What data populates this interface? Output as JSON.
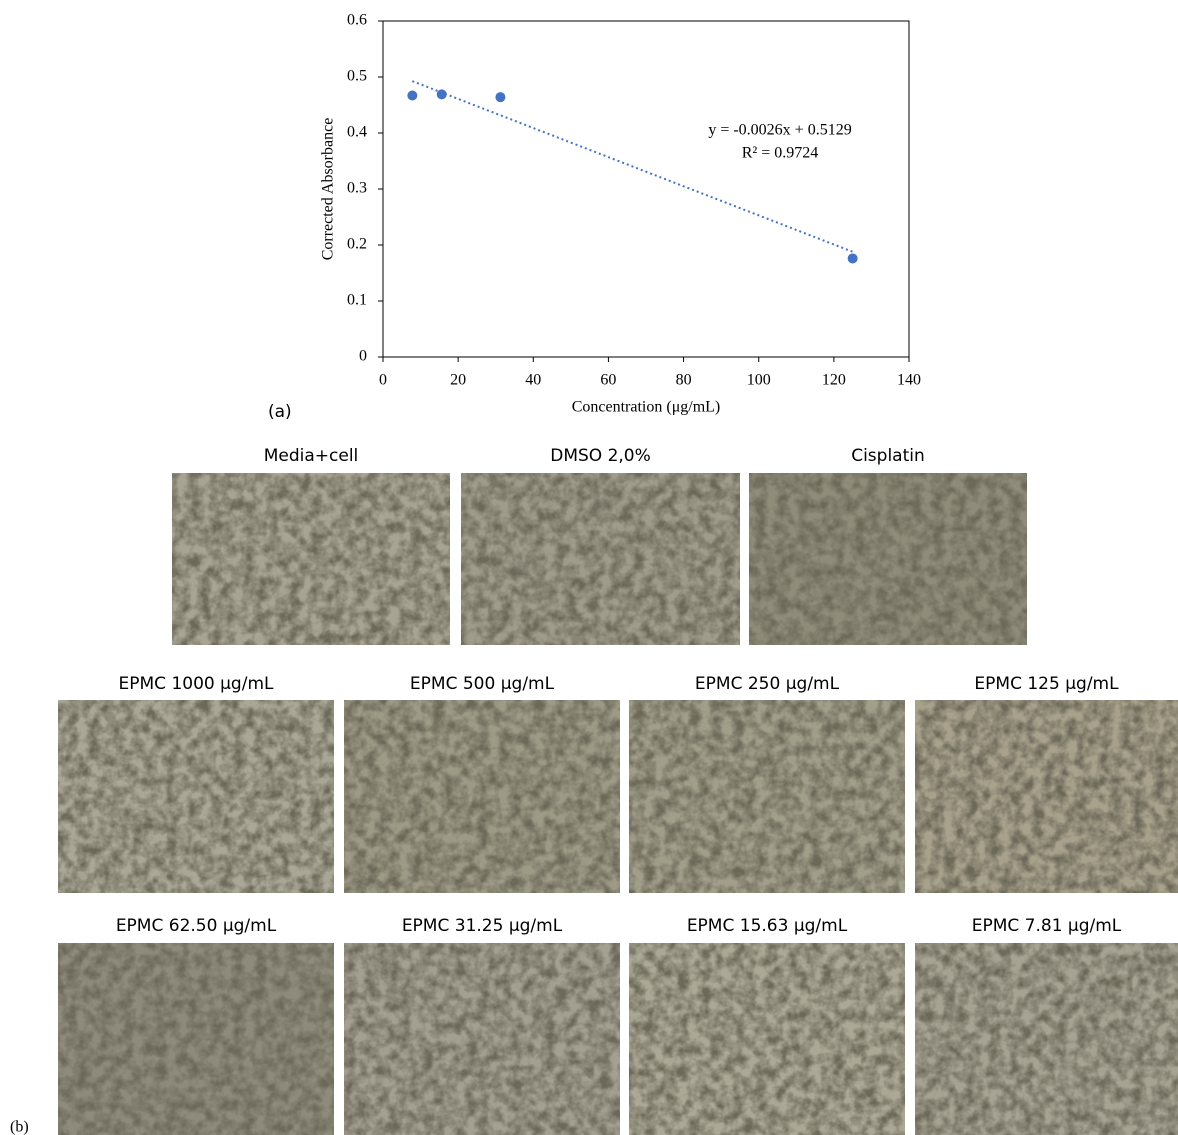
{
  "chart_data": {
    "type": "scatter",
    "x_label": "Concentration (μg/mL)",
    "y_label": "Corrected Absorbance",
    "x": [
      7.81,
      15.63,
      31.25,
      125
    ],
    "values": [
      0.467,
      0.469,
      0.464,
      0.176
    ],
    "color": "#4472c4",
    "xlim": [
      0,
      140
    ],
    "ylim": [
      0,
      0.6
    ],
    "xticks": [
      0,
      20,
      40,
      60,
      80,
      100,
      120,
      140
    ],
    "yticks": [
      0,
      0.1,
      0.2,
      0.3,
      0.4,
      0.5,
      0.6
    ],
    "trendline": {
      "slope": -0.0026,
      "intercept": 0.5129,
      "color": "#4472c4",
      "equation": "y = -0.0026x + 0.5129",
      "r_squared": "R² = 0.9724"
    }
  },
  "panel_labels": [
    "(a)",
    "(b)"
  ],
  "micrographs": [
    {
      "title": "Media+cell"
    },
    {
      "title": "DMSO 2,0%"
    },
    {
      "title": "Cisplatin"
    },
    {
      "title": "EPMC 1000 μg/mL"
    },
    {
      "title": "EPMC 500 μg/mL"
    },
    {
      "title": "EPMC 250 μg/mL"
    },
    {
      "title": "EPMC 125 μg/mL"
    },
    {
      "title": "EPMC 62.50 μg/mL"
    },
    {
      "title": "EPMC 31.25 μg/mL"
    },
    {
      "title": "EPMC 15.63 μg/mL"
    },
    {
      "title": "EPMC 7.81 μg/mL"
    }
  ]
}
